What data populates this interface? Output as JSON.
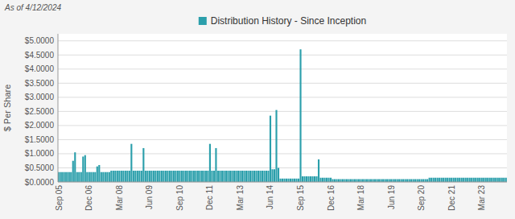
{
  "chart_data": {
    "type": "bar",
    "subtitle": "As of 4/12/2024",
    "y_label": "$ Per Share",
    "categories": [
      "Sep 05",
      null,
      null,
      null,
      null,
      null,
      null,
      null,
      null,
      null,
      null,
      null,
      null,
      null,
      null,
      "Dec 06",
      null,
      null,
      null,
      null,
      null,
      null,
      null,
      null,
      null,
      null,
      null,
      null,
      null,
      null,
      "Mar 08",
      null,
      null,
      null,
      null,
      null,
      null,
      null,
      null,
      null,
      null,
      null,
      null,
      null,
      null,
      "Jun 09",
      null,
      null,
      null,
      null,
      null,
      null,
      null,
      null,
      null,
      null,
      null,
      null,
      null,
      null,
      "Sep 10",
      null,
      null,
      null,
      null,
      null,
      null,
      null,
      null,
      null,
      null,
      null,
      null,
      null,
      null,
      "Dec 11",
      null,
      null,
      null,
      null,
      null,
      null,
      null,
      null,
      null,
      null,
      null,
      null,
      null,
      null,
      "Mar 13",
      null,
      null,
      null,
      null,
      null,
      null,
      null,
      null,
      null,
      null,
      null,
      null,
      null,
      null,
      "Jun 14",
      null,
      null,
      null,
      null,
      null,
      null,
      null,
      null,
      null,
      null,
      null,
      null,
      null,
      null,
      "Sep 15",
      null,
      null,
      null,
      null,
      null,
      null,
      null,
      null,
      null,
      null,
      null,
      null,
      null,
      null,
      "Dec 16",
      null,
      null,
      null,
      null,
      null,
      null,
      null,
      null,
      null,
      null,
      null,
      null,
      null,
      null,
      "Mar 18",
      null,
      null,
      null,
      null,
      null,
      null,
      null,
      null,
      null,
      null,
      null,
      null,
      null,
      null,
      "Jun 19",
      null,
      null,
      null,
      null,
      null,
      null,
      null,
      null,
      null,
      null,
      null,
      null,
      null,
      null,
      "Sep 20",
      null,
      null,
      null,
      null,
      null,
      null,
      null,
      null,
      null,
      null,
      null,
      null,
      null,
      null,
      "Dec 21",
      null,
      null,
      null,
      null,
      null,
      null,
      null,
      null,
      null,
      null,
      null,
      null,
      null,
      null,
      "Mar 23",
      null,
      null,
      null,
      null,
      null,
      null,
      null,
      null,
      null,
      null,
      null,
      null
    ],
    "series": [
      {
        "name": "Distribution History - Since Inception",
        "color": "#2B9FAB",
        "values": [
          0.35,
          0.35,
          0.35,
          0.35,
          0.35,
          0.35,
          0.35,
          0.75,
          1.05,
          0.35,
          0.35,
          0.35,
          0.9,
          0.95,
          0.35,
          0.35,
          0.35,
          0.35,
          0.35,
          0.55,
          0.6,
          0.35,
          0.35,
          0.35,
          0.35,
          0.35,
          0.4,
          0.4,
          0.4,
          0.4,
          0.4,
          0.4,
          0.4,
          0.4,
          0.4,
          0.4,
          1.35,
          0.4,
          0.4,
          0.4,
          0.4,
          0.4,
          1.2,
          0.4,
          0.4,
          0.4,
          0.4,
          0.4,
          0.4,
          0.4,
          0.4,
          0.4,
          0.4,
          0.4,
          0.4,
          0.4,
          0.4,
          0.4,
          0.4,
          0.4,
          0.4,
          0.4,
          0.4,
          0.4,
          0.4,
          0.4,
          0.4,
          0.4,
          0.4,
          0.4,
          0.4,
          0.4,
          0.4,
          0.4,
          0.4,
          1.35,
          0.4,
          0.4,
          1.2,
          0.4,
          0.4,
          0.4,
          0.4,
          0.4,
          0.4,
          0.4,
          0.4,
          0.4,
          0.4,
          0.4,
          0.4,
          0.4,
          0.4,
          0.4,
          0.4,
          0.4,
          0.4,
          0.4,
          0.4,
          0.4,
          0.4,
          0.4,
          0.4,
          0.4,
          0.4,
          2.35,
          0.45,
          0.45,
          2.55,
          0.5,
          0.12,
          0.12,
          0.12,
          0.12,
          0.12,
          0.12,
          0.12,
          0.12,
          0.12,
          0.12,
          4.7,
          0.2,
          0.2,
          0.2,
          0.2,
          0.2,
          0.2,
          0.2,
          0.2,
          0.8,
          0.15,
          0.15,
          0.15,
          0.15,
          0.15,
          0.15,
          0.1,
          0.1,
          0.1,
          0.1,
          0.1,
          0.1,
          0.1,
          0.1,
          0.1,
          0.1,
          0.1,
          0.1,
          0.1,
          0.1,
          0.1,
          0.1,
          0.1,
          0.1,
          0.1,
          0.1,
          0.1,
          0.1,
          0.1,
          0.1,
          0.1,
          0.1,
          0.1,
          0.1,
          0.1,
          0.1,
          0.1,
          0.1,
          0.1,
          0.1,
          0.1,
          0.1,
          0.1,
          0.1,
          0.1,
          0.1,
          0.1,
          0.1,
          0.1,
          0.1,
          0.1,
          0.1,
          0.1,
          0.1,
          0.15,
          0.15,
          0.15,
          0.15,
          0.15,
          0.15,
          0.15,
          0.15,
          0.15,
          0.15,
          0.15,
          0.15,
          0.15,
          0.15,
          0.15,
          0.15,
          0.15,
          0.15,
          0.15,
          0.15,
          0.15,
          0.15,
          0.15,
          0.15,
          0.15,
          0.15,
          0.15,
          0.15,
          0.15,
          0.15,
          0.15,
          0.15,
          0.15,
          0.15,
          0.15,
          0.15,
          0.15,
          0.15,
          0.15
        ]
      }
    ],
    "ylim": [
      0,
      5.25
    ],
    "yticks": [
      {
        "value": 0.0,
        "label": "$0.0000"
      },
      {
        "value": 0.5,
        "label": "$0.5000"
      },
      {
        "value": 1.0,
        "label": "$1.0000"
      },
      {
        "value": 1.5,
        "label": "$1.5000"
      },
      {
        "value": 2.0,
        "label": "$2.0000"
      },
      {
        "value": 2.5,
        "label": "$2.5000"
      },
      {
        "value": 3.0,
        "label": "$3.0000"
      },
      {
        "value": 3.5,
        "label": "$3.5000"
      },
      {
        "value": 4.0,
        "label": "$4.0000"
      },
      {
        "value": 4.5,
        "label": "$4.5000"
      },
      {
        "value": 5.0,
        "label": "$5.0000"
      }
    ],
    "grid": true,
    "legend": "top"
  }
}
